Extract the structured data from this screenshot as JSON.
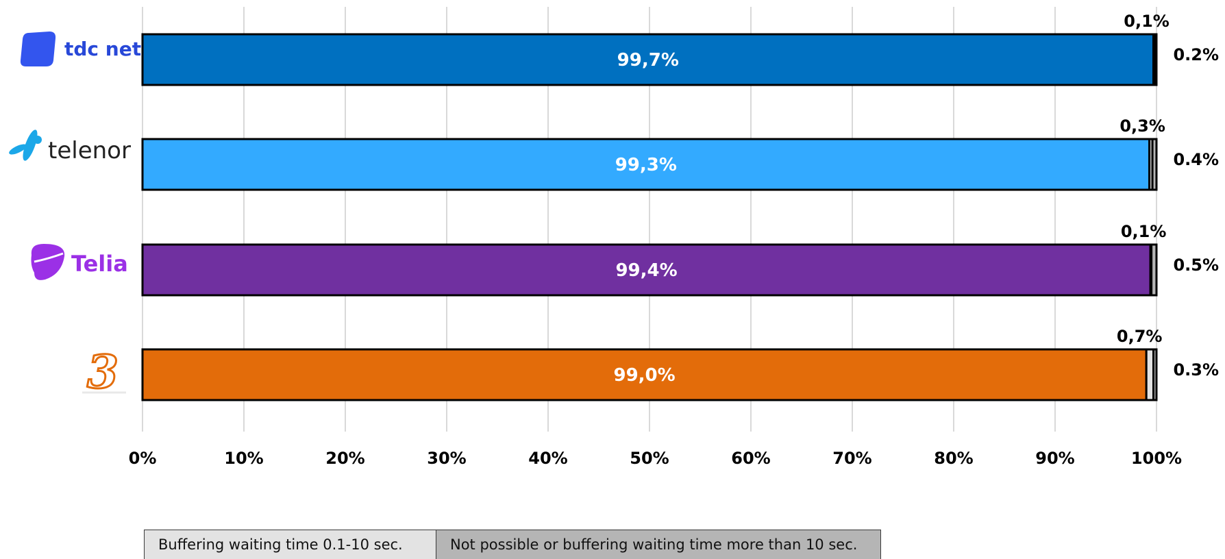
{
  "chart_data": {
    "type": "bar",
    "orientation": "horizontal",
    "stacked": true,
    "categories": [
      "tdc net",
      "telenor",
      "Telia",
      "3"
    ],
    "xlim": [
      0,
      100
    ],
    "x_ticks": [
      "0%",
      "10%",
      "20%",
      "30%",
      "40%",
      "50%",
      "60%",
      "70%",
      "80%",
      "90%",
      "100%"
    ],
    "grid": "vertical",
    "colors": {
      "tdc net": "#0070C0",
      "telenor": "#33AAFF",
      "Telia": "#7030A0",
      "3": "#E36C0A",
      "buffering": "#E3E3E3",
      "failure": "#B5B5B5",
      "grid": "#D9D9D9"
    },
    "series": [
      {
        "values": [
          99.7,
          99.3,
          99.4,
          99.0
        ],
        "labels": [
          "99,7%",
          "99,3%",
          "99,4%",
          "99,0%"
        ]
      },
      {
        "name": "Buffering waiting time 0.1-10 sec.",
        "values": [
          0.1,
          0.3,
          0.1,
          0.7
        ],
        "labels": [
          "0,1%",
          "0,3%",
          "0,1%",
          "0,7%"
        ]
      },
      {
        "name": "Not possible or buffering waiting time more than 10 sec.",
        "values": [
          0.2,
          0.4,
          0.5,
          0.3
        ],
        "labels": [
          "0.2%",
          "0.4%",
          "0.5%",
          "0.3%"
        ]
      }
    ],
    "legend": {
      "position": "bottom",
      "items": [
        "Buffering waiting time 0.1-10 sec.",
        "Not possible or buffering waiting time more than 10 sec."
      ]
    },
    "logos": [
      {
        "name": "tdc-net-logo",
        "text": "tdc net"
      },
      {
        "name": "telenor-logo",
        "text": "telenor"
      },
      {
        "name": "telia-logo",
        "text": "Telia"
      },
      {
        "name": "three-logo",
        "text": "3"
      }
    ]
  }
}
